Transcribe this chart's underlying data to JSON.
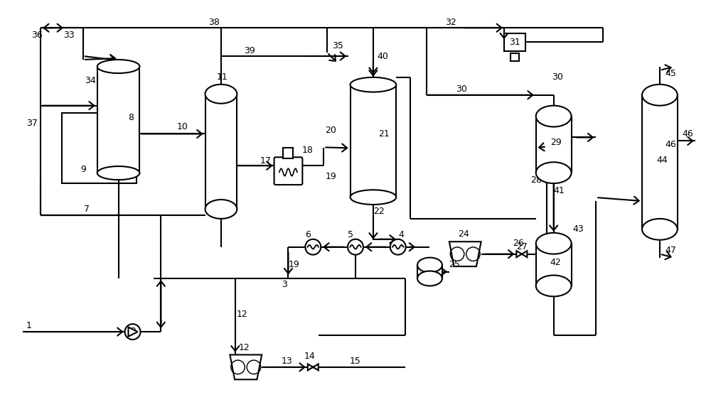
{
  "bg": "#ffffff",
  "lc": "#000000",
  "lw": 1.5,
  "fs": 9,
  "fw": 10.0,
  "fh": 5.73,
  "xlim": [
    0,
    100
  ],
  "ylim": [
    0,
    57.3
  ]
}
